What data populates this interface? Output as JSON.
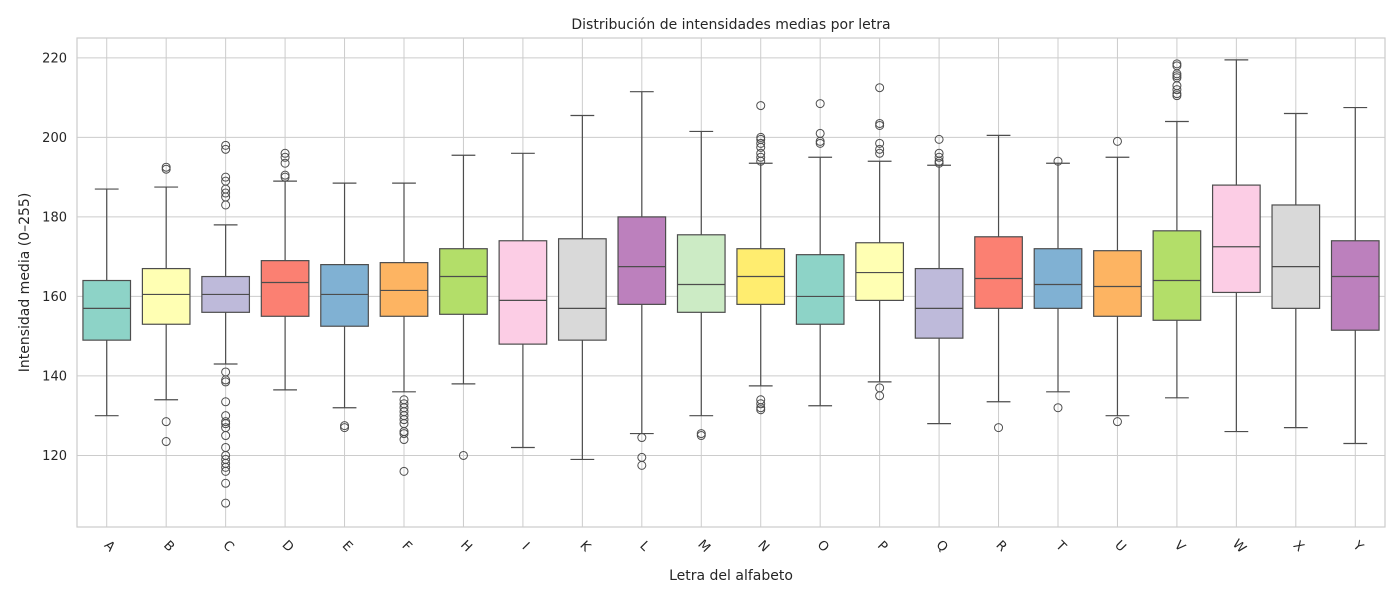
{
  "chart_data": {
    "type": "boxplot",
    "title": "Distribución de intensidades medias por letra",
    "xlabel": "Letra del alfabeto",
    "ylabel": "Intensidad media (0–255)",
    "ylim": [
      102,
      225
    ],
    "yticks": [
      120,
      140,
      160,
      180,
      200,
      220
    ],
    "grid": true,
    "palette": [
      "#8dd3c7",
      "#ffffb3",
      "#bebada",
      "#fb8072",
      "#80b1d3",
      "#fdb462",
      "#b3de69",
      "#fccde5",
      "#d9d9d9",
      "#bc80bd",
      "#ccebc5",
      "#ffed6f"
    ],
    "boxes": [
      {
        "label": "A",
        "whisker_low": 130,
        "q1": 149,
        "median": 157,
        "q3": 164,
        "whisker_high": 187,
        "outliers": []
      },
      {
        "label": "B",
        "whisker_low": 134,
        "q1": 153,
        "median": 160.5,
        "q3": 167,
        "whisker_high": 187.5,
        "outliers": [
          192,
          192.5,
          128.5,
          123.5
        ]
      },
      {
        "label": "C",
        "whisker_low": 143,
        "q1": 156,
        "median": 160.5,
        "q3": 165,
        "whisker_high": 178,
        "outliers": [
          197,
          198,
          190,
          189,
          187,
          186,
          185,
          183,
          141,
          139,
          138.5,
          133.5,
          130,
          128.5,
          128,
          127,
          125,
          122,
          120,
          119,
          118,
          117,
          116,
          113,
          108
        ]
      },
      {
        "label": "D",
        "whisker_low": 136.5,
        "q1": 155,
        "median": 163.5,
        "q3": 169,
        "whisker_high": 189,
        "outliers": [
          196,
          195,
          193.5,
          190.5,
          190
        ]
      },
      {
        "label": "E",
        "whisker_low": 132,
        "q1": 152.5,
        "median": 160.5,
        "q3": 168,
        "whisker_high": 188.5,
        "outliers": [
          127.5,
          127
        ]
      },
      {
        "label": "F",
        "whisker_low": 136,
        "q1": 155,
        "median": 161.5,
        "q3": 168.5,
        "whisker_high": 188.5,
        "outliers": [
          134,
          133,
          132,
          131,
          130,
          129,
          128,
          126,
          125.5,
          124,
          116
        ]
      },
      {
        "label": "H",
        "whisker_low": 138,
        "q1": 155.5,
        "median": 165,
        "q3": 172,
        "whisker_high": 195.5,
        "outliers": [
          120
        ]
      },
      {
        "label": "I",
        "whisker_low": 122,
        "q1": 148,
        "median": 159,
        "q3": 174,
        "whisker_high": 196,
        "outliers": []
      },
      {
        "label": "K",
        "whisker_low": 119,
        "q1": 149,
        "median": 157,
        "q3": 174.5,
        "whisker_high": 205.5,
        "outliers": []
      },
      {
        "label": "L",
        "whisker_low": 125.5,
        "q1": 158,
        "median": 167.5,
        "q3": 180,
        "whisker_high": 211.5,
        "outliers": [
          124.5,
          119.5,
          117.5
        ]
      },
      {
        "label": "M",
        "whisker_low": 130,
        "q1": 156,
        "median": 163,
        "q3": 175.5,
        "whisker_high": 201.5,
        "outliers": [
          125.5,
          125
        ]
      },
      {
        "label": "N",
        "whisker_low": 137.5,
        "q1": 158,
        "median": 165,
        "q3": 172,
        "whisker_high": 193.5,
        "outliers": [
          208,
          200,
          199.5,
          198.5,
          197.5,
          196,
          195,
          194,
          134,
          133,
          132,
          131.5
        ]
      },
      {
        "label": "O",
        "whisker_low": 132.5,
        "q1": 153,
        "median": 160,
        "q3": 170.5,
        "whisker_high": 195,
        "outliers": [
          208.5,
          201,
          199,
          198.5
        ]
      },
      {
        "label": "P",
        "whisker_low": 138.5,
        "q1": 159,
        "median": 166,
        "q3": 173.5,
        "whisker_high": 194,
        "outliers": [
          212.5,
          203.5,
          203,
          198.5,
          197,
          196,
          137,
          135
        ]
      },
      {
        "label": "Q",
        "whisker_low": 128,
        "q1": 149.5,
        "median": 157,
        "q3": 167,
        "whisker_high": 193,
        "outliers": [
          199.5,
          196,
          195,
          194,
          193.5
        ]
      },
      {
        "label": "R",
        "whisker_low": 133.5,
        "q1": 157,
        "median": 164.5,
        "q3": 175,
        "whisker_high": 200.5,
        "outliers": [
          127
        ]
      },
      {
        "label": "T",
        "whisker_low": 136,
        "q1": 157,
        "median": 163,
        "q3": 172,
        "whisker_high": 193.5,
        "outliers": [
          194,
          132
        ]
      },
      {
        "label": "U",
        "whisker_low": 130,
        "q1": 155,
        "median": 162.5,
        "q3": 171.5,
        "whisker_high": 195,
        "outliers": [
          199,
          128.5
        ]
      },
      {
        "label": "V",
        "whisker_low": 134.5,
        "q1": 154,
        "median": 164,
        "q3": 176.5,
        "whisker_high": 204,
        "outliers": [
          218.5,
          218,
          216,
          215.5,
          215,
          213,
          212,
          211,
          210.5
        ]
      },
      {
        "label": "W",
        "whisker_low": 126,
        "q1": 161,
        "median": 172.5,
        "q3": 188,
        "whisker_high": 219.5,
        "outliers": []
      },
      {
        "label": "X",
        "whisker_low": 127,
        "q1": 157,
        "median": 167.5,
        "q3": 183,
        "whisker_high": 206,
        "outliers": []
      },
      {
        "label": "Y",
        "whisker_low": 123,
        "q1": 151.5,
        "median": 165,
        "q3": 174,
        "whisker_high": 207.5,
        "outliers": []
      }
    ]
  }
}
